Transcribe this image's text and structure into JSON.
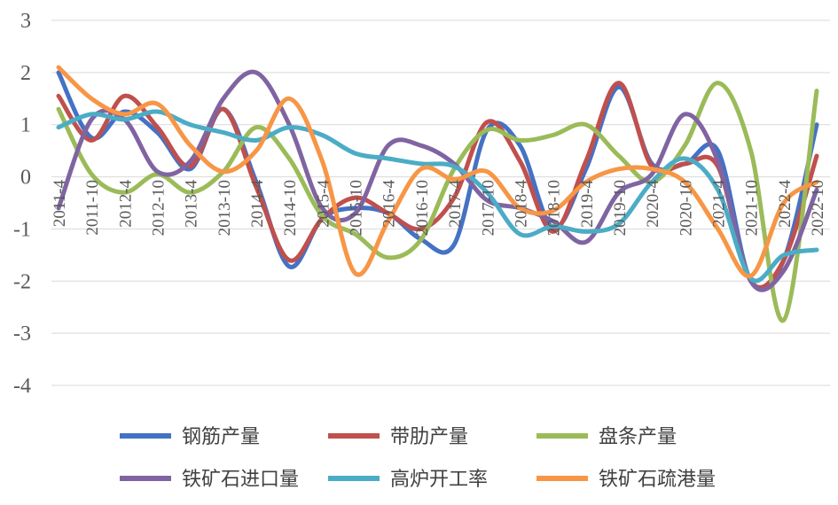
{
  "chart_data": {
    "type": "line",
    "title": "",
    "xlabel": "",
    "ylabel": "",
    "ylim": [
      -4,
      3
    ],
    "yticks": [
      3,
      2,
      1,
      0,
      -1,
      -2,
      -3,
      -4
    ],
    "grid": true,
    "legend_position": "bottom",
    "x_tick_labels": [
      "2011-4",
      "2011-10",
      "2012-4",
      "2012-10",
      "2013-4",
      "2013-10",
      "2014-4",
      "2014-10",
      "2015-4",
      "2015-10",
      "2016-4",
      "2016-10",
      "2017-4",
      "2017-10",
      "2018-4",
      "2018-10",
      "2019-4",
      "2019-10",
      "2020-4",
      "2020-10",
      "2021-4",
      "2021-10",
      "2022-4",
      "2022-10"
    ],
    "series": [
      {
        "name": "钢筋产量",
        "color": "#4472C4",
        "values": [
          2.0,
          0.75,
          1.25,
          0.85,
          0.15,
          1.3,
          -0.1,
          -1.72,
          -0.8,
          -0.6,
          -0.7,
          -1.2,
          -1.3,
          0.9,
          0.6,
          -0.98,
          0.15,
          1.72,
          0.25,
          0.25,
          0.5,
          -2.0,
          -1.6,
          1.0
        ]
      },
      {
        "name": "带肋产量",
        "color": "#C0504D",
        "values": [
          1.55,
          0.7,
          1.55,
          0.95,
          0.2,
          1.3,
          -0.2,
          -1.6,
          -0.8,
          -0.4,
          -0.7,
          -1.0,
          -0.4,
          1.05,
          0.3,
          -1.05,
          0.3,
          1.8,
          0.2,
          0.25,
          0.2,
          -2.0,
          -1.6,
          0.4
        ]
      },
      {
        "name": "盘条产量",
        "color": "#9BBB59",
        "values": [
          1.3,
          0.05,
          -0.3,
          0.05,
          -0.3,
          0.1,
          0.95,
          0.35,
          -0.75,
          -1.1,
          -1.55,
          -1.2,
          0.15,
          0.9,
          0.7,
          0.8,
          1.0,
          0.4,
          -0.1,
          0.6,
          1.8,
          0.5,
          -2.75,
          1.65
        ]
      },
      {
        "name": "铁矿石进口量",
        "color": "#8064A2",
        "values": [
          -0.6,
          1.1,
          1.1,
          0.1,
          0.3,
          1.5,
          2.0,
          1.0,
          -0.6,
          -0.7,
          0.6,
          0.6,
          0.25,
          -0.45,
          -0.6,
          -0.85,
          -1.25,
          -0.3,
          0.05,
          1.2,
          0.3,
          -2.0,
          -1.8,
          -0.25
        ]
      },
      {
        "name": "高炉开工率",
        "color": "#4BACC6",
        "values": [
          0.95,
          1.2,
          1.1,
          1.25,
          1.0,
          0.85,
          0.7,
          0.95,
          0.8,
          0.45,
          0.35,
          0.25,
          0.2,
          -0.3,
          -1.1,
          -0.95,
          -1.05,
          -0.9,
          -0.1,
          0.35,
          -0.25,
          -1.95,
          -1.5,
          -1.4
        ]
      },
      {
        "name": "铁矿石疏港量",
        "color": "#F79646",
        "values": [
          2.1,
          1.5,
          1.2,
          1.4,
          0.6,
          0.1,
          0.5,
          1.5,
          0.3,
          -1.85,
          -0.85,
          0.15,
          -0.05,
          0.1,
          -0.6,
          -0.65,
          -0.1,
          0.15,
          0.15,
          -0.1,
          -1.0,
          -1.9,
          -0.5,
          -0.1
        ]
      }
    ]
  }
}
